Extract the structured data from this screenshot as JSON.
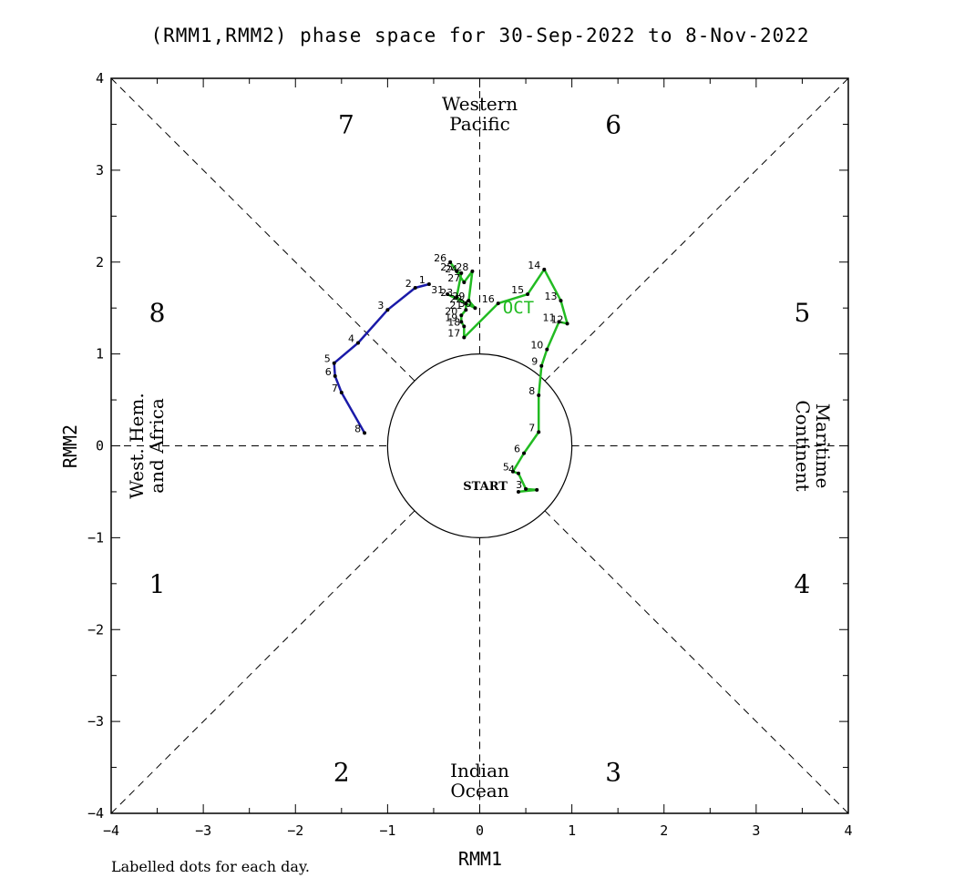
{
  "chart_data": {
    "type": "line",
    "title": "(RMM1,RMM2) phase space for 30-Sep-2022 to  8-Nov-2022",
    "xlabel": "RMM1",
    "ylabel": "RMM2",
    "xlim": [
      -4,
      4
    ],
    "ylim": [
      -4,
      4
    ],
    "xticks": [
      "−4",
      "−3",
      "−2",
      "−1",
      "0",
      "1",
      "2",
      "3",
      "4"
    ],
    "yticks": [
      "−4",
      "−3",
      "−2",
      "−1",
      "0",
      "1",
      "2",
      "3",
      "4"
    ],
    "grid": false,
    "footnote": "Labelled dots for each day.",
    "phase_labels": [
      {
        "text": "1",
        "x": -3.5,
        "y": -1.5
      },
      {
        "text": "2",
        "x": -1.5,
        "y": -3.55
      },
      {
        "text": "3",
        "x": 1.45,
        "y": -3.55
      },
      {
        "text": "4",
        "x": 3.5,
        "y": -1.5
      },
      {
        "text": "5",
        "x": 3.5,
        "y": 1.45
      },
      {
        "text": "6",
        "x": 1.45,
        "y": 3.5
      },
      {
        "text": "7",
        "x": -1.45,
        "y": 3.5
      },
      {
        "text": "8",
        "x": -3.5,
        "y": 1.45
      }
    ],
    "region_labels": {
      "top": [
        "Western",
        "Pacific"
      ],
      "bottom": [
        "Indian",
        "Ocean"
      ],
      "left": [
        "West. Hem.",
        "and Africa"
      ],
      "right": [
        "Maritime",
        "Continent"
      ]
    },
    "start_label": "START",
    "series": [
      {
        "month_label": "",
        "color": "#22bb22",
        "points": [
          {
            "day": "",
            "x": 0.42,
            "y": -0.5
          },
          {
            "day": "",
            "x": 0.62,
            "y": -0.48
          },
          {
            "day": "3",
            "x": 0.5,
            "y": -0.47
          },
          {
            "day": "4",
            "x": 0.42,
            "y": -0.3
          },
          {
            "day": "5",
            "x": 0.36,
            "y": -0.28
          },
          {
            "day": "6",
            "x": 0.48,
            "y": -0.08
          },
          {
            "day": "7",
            "x": 0.64,
            "y": 0.15
          },
          {
            "day": "8",
            "x": 0.64,
            "y": 0.55
          },
          {
            "day": "9",
            "x": 0.67,
            "y": 0.87
          },
          {
            "day": "10",
            "x": 0.73,
            "y": 1.05
          },
          {
            "day": "11",
            "x": 0.86,
            "y": 1.35
          },
          {
            "day": "12",
            "x": 0.95,
            "y": 1.33
          },
          {
            "day": "13",
            "x": 0.88,
            "y": 1.58
          },
          {
            "day": "14",
            "x": 0.7,
            "y": 1.92
          },
          {
            "day": "15",
            "x": 0.52,
            "y": 1.65
          },
          {
            "day": "16",
            "x": 0.2,
            "y": 1.55
          },
          {
            "day": "17",
            "x": -0.17,
            "y": 1.18
          },
          {
            "day": "18",
            "x": -0.17,
            "y": 1.3
          },
          {
            "day": "19",
            "x": -0.2,
            "y": 1.35
          },
          {
            "day": "20",
            "x": -0.2,
            "y": 1.42
          },
          {
            "day": "21",
            "x": -0.15,
            "y": 1.48
          },
          {
            "day": "22",
            "x": -0.15,
            "y": 1.55
          },
          {
            "day": "23",
            "x": -0.25,
            "y": 1.62
          },
          {
            "day": "24",
            "x": -0.2,
            "y": 1.88
          },
          {
            "day": "25",
            "x": -0.25,
            "y": 1.9
          },
          {
            "day": "26",
            "x": -0.32,
            "y": 2.0
          },
          {
            "day": "27",
            "x": -0.17,
            "y": 1.78
          },
          {
            "day": "28",
            "x": -0.08,
            "y": 1.9
          },
          {
            "day": "29",
            "x": -0.12,
            "y": 1.58
          },
          {
            "day": "30",
            "x": -0.05,
            "y": 1.5
          },
          {
            "day": "31",
            "x": -0.35,
            "y": 1.65
          }
        ]
      },
      {
        "month_label": "",
        "color": "#1a1aa8",
        "points": [
          {
            "day": "1",
            "x": -0.55,
            "y": 1.76
          },
          {
            "day": "2",
            "x": -0.7,
            "y": 1.72
          },
          {
            "day": "3",
            "x": -1.0,
            "y": 1.48
          },
          {
            "day": "4",
            "x": -1.32,
            "y": 1.12
          },
          {
            "day": "5",
            "x": -1.58,
            "y": 0.9
          },
          {
            "day": "6",
            "x": -1.57,
            "y": 0.76
          },
          {
            "day": "7",
            "x": -1.5,
            "y": 0.58
          },
          {
            "day": "8",
            "x": -1.25,
            "y": 0.14
          }
        ]
      }
    ],
    "month_annotations": [
      {
        "text": "OCT",
        "color": "#22bb22",
        "x": 0.42,
        "y": 1.51
      }
    ]
  }
}
